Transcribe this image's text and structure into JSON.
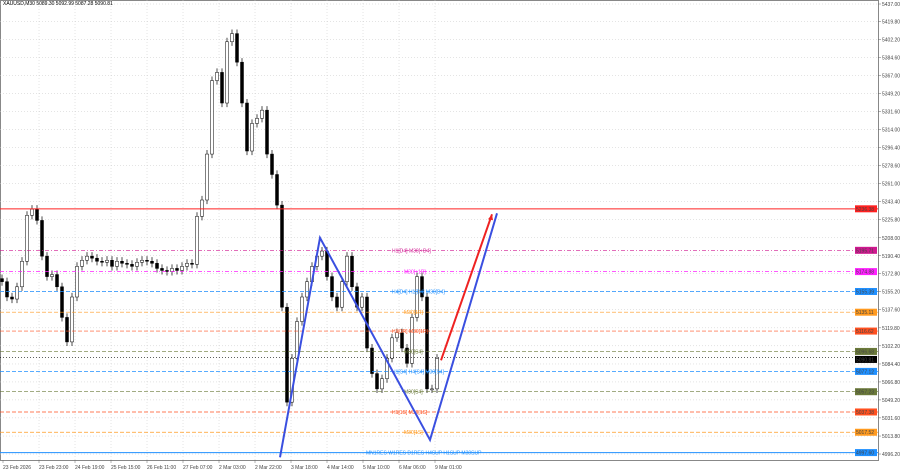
{
  "window": {
    "symbol_header": "XAUUSD,M30  5089.30 5092.99 5087.28 5090.81"
  },
  "colors": {
    "up_candle": "#ffffff",
    "down_candle": "#000000",
    "wick": "#000000",
    "zigzag": "#3a4fe0",
    "projection": "#ee2222",
    "grid": "#c8c8c8"
  },
  "chart_data": {
    "type": "candlestick",
    "symbol": "XAUUSD",
    "timeframe": "M30",
    "ylim": [
      4990,
      5440
    ],
    "grid": true,
    "y_ticks": [
      "5437.00",
      "5419.80",
      "5402.20",
      "5384.60",
      "5367.00",
      "5349.20",
      "5331.60",
      "5314.00",
      "5296.40",
      "5278.60",
      "5261.00",
      "5243.40",
      "5225.80",
      "5208.00",
      "5190.40",
      "5172.80",
      "5155.20",
      "5137.60",
      "5119.80",
      "5102.20",
      "5084.40",
      "5066.80",
      "5049.20",
      "5031.60",
      "5013.80",
      "4996.20"
    ],
    "x_ticks": [
      "23 Feb 2026",
      "23 Feb 23:00",
      "24 Feb 19:00",
      "25 Feb 15:00",
      "26 Feb 11:00",
      "27 Feb 07:00",
      "2 Mar 03:00",
      "2 Mar 22:00",
      "3 Mar 18:00",
      "4 Mar 14:00",
      "5 Mar 10:00",
      "6 Mar 06:00",
      "9 Mar 01:00"
    ],
    "closes": [
      5165,
      5150,
      5148,
      5160,
      5185,
      5230,
      5236,
      5225,
      5190,
      5170,
      5172,
      5160,
      5130,
      5106,
      5150,
      5180,
      5186,
      5190,
      5188,
      5185,
      5184,
      5186,
      5180,
      5185,
      5183,
      5182,
      5180,
      5184,
      5186,
      5185,
      5183,
      5178,
      5176,
      5175,
      5178,
      5176,
      5180,
      5183,
      5182,
      5229,
      5245,
      5290,
      5362,
      5370,
      5340,
      5400,
      5408,
      5380,
      5340,
      5293,
      5320,
      5325,
      5333,
      5290,
      5270,
      5240,
      5140,
      5047,
      5090,
      5126,
      5150,
      5165,
      5180,
      5190,
      5195,
      5170,
      5150,
      5140,
      5165,
      5190,
      5160,
      5140,
      5150,
      5100,
      5075,
      5060,
      5070,
      5090,
      5110,
      5115,
      5100,
      5085,
      5130,
      5170,
      5150,
      5060,
      5060,
      5090
    ],
    "current_price": "5090.81",
    "zigzag": [
      [
        55.6,
        4993
      ],
      [
        63.6,
        5208
      ],
      [
        85.6,
        5010
      ],
      [
        99,
        5232
      ]
    ],
    "projection": [
      [
        87.8,
        5088
      ],
      [
        98,
        5231
      ]
    ],
    "levels": [
      {
        "price": 5236.38,
        "value": "5236.38",
        "color": "#ff2020",
        "style": "solid",
        "label": ""
      },
      {
        "price": 5195.71,
        "value": "5195.71",
        "color": "#d01890",
        "style": "dashdot",
        "label": "H1[D4] M30[+D4]"
      },
      {
        "price": 5174.88,
        "value": "5174.88",
        "color": "#ff20ff",
        "style": "dashdot",
        "label": "M30[+1R]"
      },
      {
        "price": 5155.39,
        "value": "5155.39",
        "color": "#2090ff",
        "style": "dashed",
        "label": "H4[D4] H1[D4] M30[D4]"
      },
      {
        "price": 5135.11,
        "value": "5135.11",
        "color": "#ff9a20",
        "style": "dashed",
        "label": "M30[1R]"
      },
      {
        "price": 5116.62,
        "value": "5116.62",
        "color": "#ff5020",
        "style": "dashed",
        "label": "H1[1R] M30[1R]"
      },
      {
        "price": 5096.68,
        "value": "5096.68",
        "color": "#6b7a3a",
        "style": "dashed",
        "label": "M30[S4]"
      },
      {
        "price": 5090.81,
        "value": "5090.81",
        "color": "#000000",
        "style": "dotted",
        "label": ""
      },
      {
        "price": 5077.12,
        "value": "5077.12",
        "color": "#2090ff",
        "style": "dashed",
        "label": "H1[S4] H4[S4] M30[S4]"
      },
      {
        "price": 5057.23,
        "value": "5057.23",
        "color": "#6b7a3a",
        "style": "dashed",
        "label": "M30[S4]"
      },
      {
        "price": 5037.38,
        "value": "5037.38",
        "color": "#ff5020",
        "style": "dashed",
        "label": "H1[1S] M30[1S]"
      },
      {
        "price": 5017.52,
        "value": "5017.52",
        "color": "#ff9a20",
        "style": "dashed",
        "label": "M30[1S]"
      },
      {
        "price": 4997.6,
        "value": "4997.60",
        "color": "#2090ff",
        "style": "solid",
        "label": "MN1RES W1RES D1RES H4SUP H1SUP M30SUP"
      }
    ]
  }
}
